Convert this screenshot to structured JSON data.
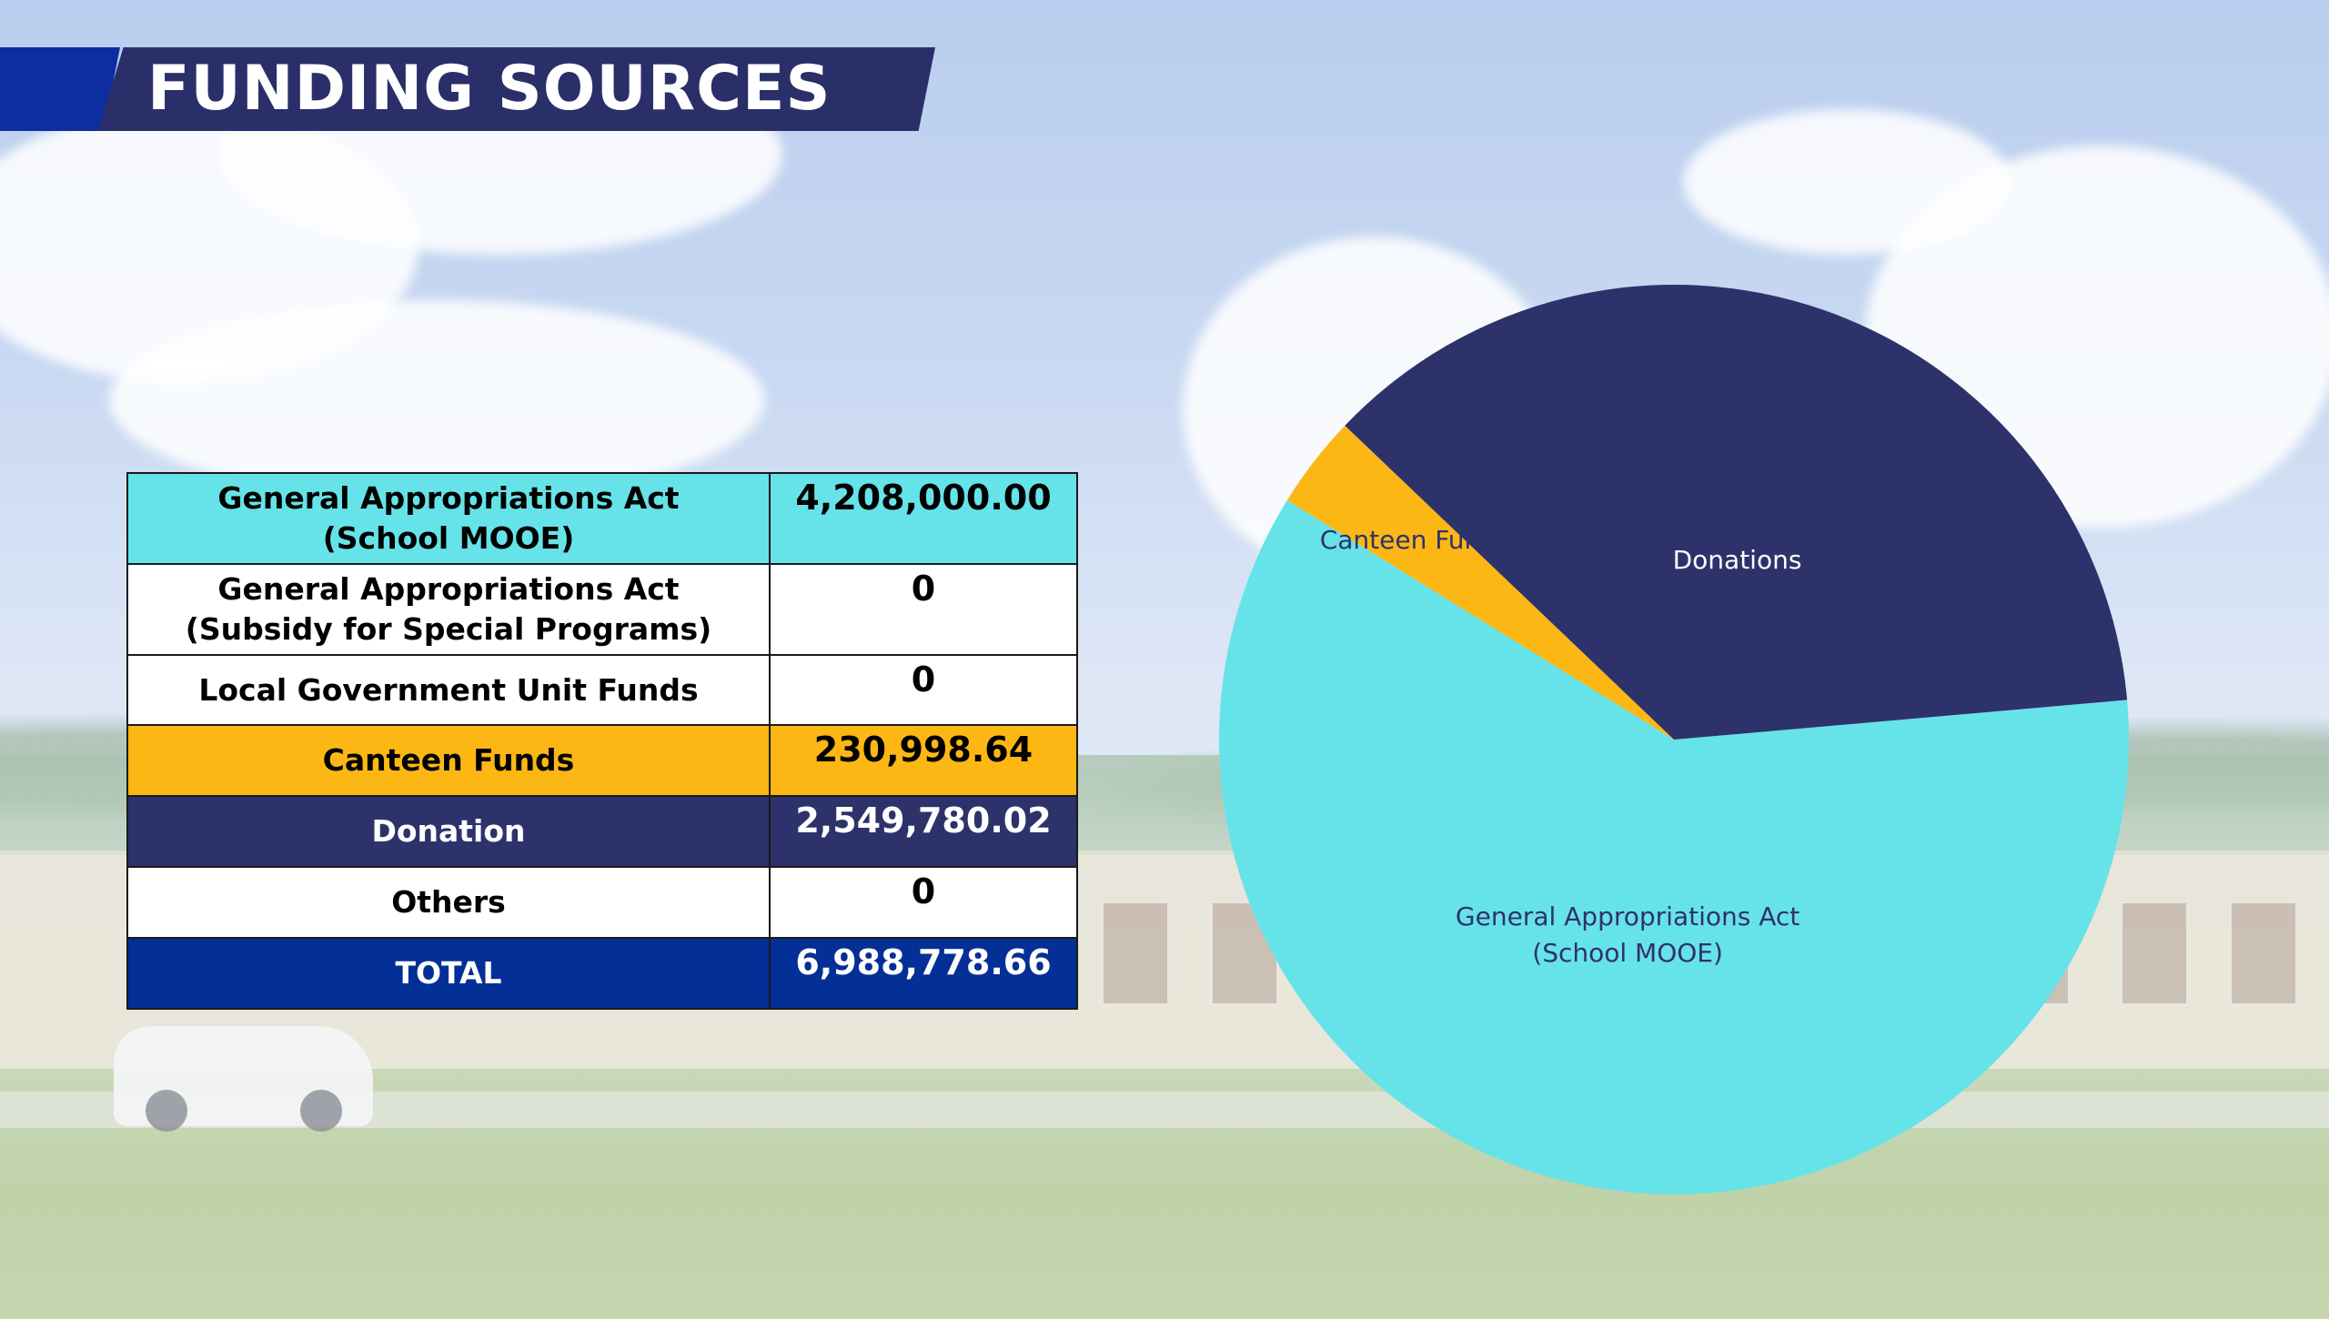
{
  "header": {
    "title": "FUNDING SOURCES"
  },
  "table": {
    "rows": [
      {
        "label_lines": [
          "General Appropriations Act",
          "(School MOOE)"
        ],
        "value": "4,208,000.00"
      },
      {
        "label_lines": [
          "General Appropriations Act",
          "(Subsidy for Special Programs)"
        ],
        "value": "0"
      },
      {
        "label_lines": [
          "Local Government Unit Funds"
        ],
        "value": "0"
      },
      {
        "label_lines": [
          "Canteen Funds"
        ],
        "value": "230,998.64"
      },
      {
        "label_lines": [
          "Donation"
        ],
        "value": "2,549,780.02"
      },
      {
        "label_lines": [
          "Others"
        ],
        "value": "0"
      },
      {
        "label_lines": [
          "TOTAL"
        ],
        "value": "6,988,778.66"
      }
    ]
  },
  "colors": {
    "cyan": "#66e3e8",
    "orange": "#fdb714",
    "navy": "#2d326b",
    "blue": "#032f96",
    "banner": "#2a2f69"
  },
  "chart_data": {
    "type": "pie",
    "slices": [
      {
        "label_lines": [
          "General Appropriations Act",
          "(School MOOE)"
        ],
        "value": 4208000.0,
        "color": "#66e3e8",
        "label_color": "#2d326b"
      },
      {
        "label_lines": [
          "Canteen Funds"
        ],
        "value": 230998.64,
        "color": "#fdb714",
        "label_color": "#2d326b"
      },
      {
        "label_lines": [
          "Donations"
        ],
        "value": 2549780.02,
        "color": "#2d326b",
        "label_color": "#ffffff"
      }
    ]
  }
}
